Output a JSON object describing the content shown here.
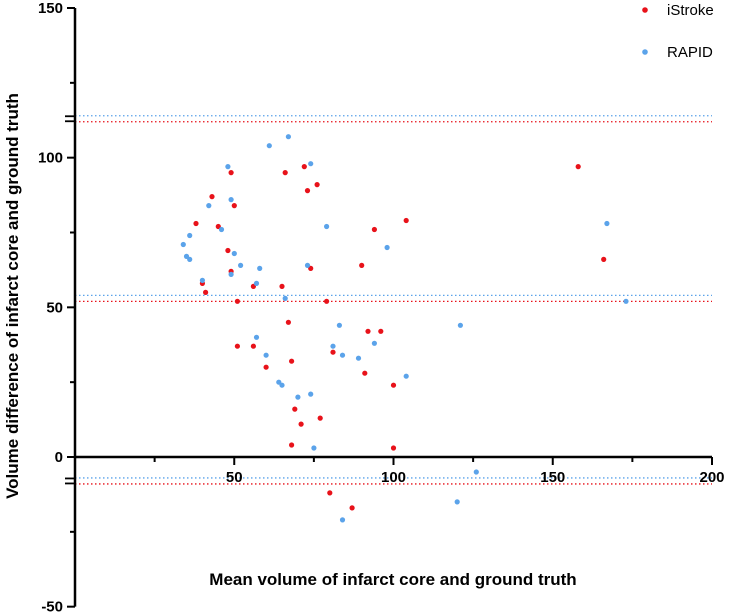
{
  "chart_data": {
    "type": "scatter",
    "xlabel": "Mean volume of infarct core and ground truth",
    "ylabel": "Volume difference of infarct core and ground truth",
    "xlim": [
      0,
      200
    ],
    "ylim": [
      -50,
      150
    ],
    "x_ticks": [
      50,
      100,
      150,
      200
    ],
    "y_ticks": [
      -50,
      0,
      50,
      100,
      150
    ],
    "axis_break_y": [
      -8,
      113
    ],
    "legend_position": "top-right",
    "series": [
      {
        "name": "iStroke",
        "color": "#e8121a",
        "points": [
          [
            38,
            78
          ],
          [
            40,
            58
          ],
          [
            41,
            55
          ],
          [
            43,
            87
          ],
          [
            45,
            77
          ],
          [
            48,
            69
          ],
          [
            49,
            62
          ],
          [
            49,
            95
          ],
          [
            50,
            84
          ],
          [
            51,
            52
          ],
          [
            51,
            37
          ],
          [
            56,
            37
          ],
          [
            56,
            57
          ],
          [
            60,
            30
          ],
          [
            65,
            57
          ],
          [
            66,
            95
          ],
          [
            67,
            45
          ],
          [
            68,
            32
          ],
          [
            68,
            4
          ],
          [
            69,
            16
          ],
          [
            71,
            11
          ],
          [
            72,
            97
          ],
          [
            73,
            89
          ],
          [
            74,
            63
          ],
          [
            76,
            91
          ],
          [
            77,
            13
          ],
          [
            79,
            52
          ],
          [
            80,
            -12
          ],
          [
            81,
            35
          ],
          [
            87,
            -17
          ],
          [
            90,
            64
          ],
          [
            91,
            28
          ],
          [
            92,
            42
          ],
          [
            94,
            76
          ],
          [
            96,
            42
          ],
          [
            100,
            24
          ],
          [
            100,
            3
          ],
          [
            104,
            79
          ],
          [
            158,
            97
          ],
          [
            166,
            66
          ]
        ]
      },
      {
        "name": "RAPID",
        "color": "#5ba3ea",
        "points": [
          [
            34,
            71
          ],
          [
            35,
            67
          ],
          [
            36,
            74
          ],
          [
            36,
            66
          ],
          [
            40,
            59
          ],
          [
            42,
            84
          ],
          [
            46,
            76
          ],
          [
            48,
            97
          ],
          [
            49,
            86
          ],
          [
            49,
            61
          ],
          [
            50,
            68
          ],
          [
            52,
            64
          ],
          [
            57,
            40
          ],
          [
            57,
            58
          ],
          [
            58,
            63
          ],
          [
            60,
            34
          ],
          [
            61,
            104
          ],
          [
            64,
            25
          ],
          [
            65,
            24
          ],
          [
            66,
            53
          ],
          [
            67,
            107
          ],
          [
            70,
            20
          ],
          [
            73,
            64
          ],
          [
            74,
            98
          ],
          [
            74,
            21
          ],
          [
            75,
            3
          ],
          [
            79,
            77
          ],
          [
            81,
            37
          ],
          [
            83,
            44
          ],
          [
            84,
            34
          ],
          [
            84,
            -21
          ],
          [
            89,
            33
          ],
          [
            94,
            38
          ],
          [
            98,
            70
          ],
          [
            104,
            27
          ],
          [
            121,
            44
          ],
          [
            120,
            -15
          ],
          [
            126,
            -5
          ],
          [
            167,
            78
          ],
          [
            173,
            52
          ]
        ]
      }
    ],
    "reference_lines": [
      {
        "series": "iStroke",
        "style": "dotted",
        "values": [
          112,
          52,
          -9
        ]
      },
      {
        "series": "RAPID",
        "style": "dotted",
        "values": [
          114,
          54,
          -7
        ]
      }
    ]
  }
}
